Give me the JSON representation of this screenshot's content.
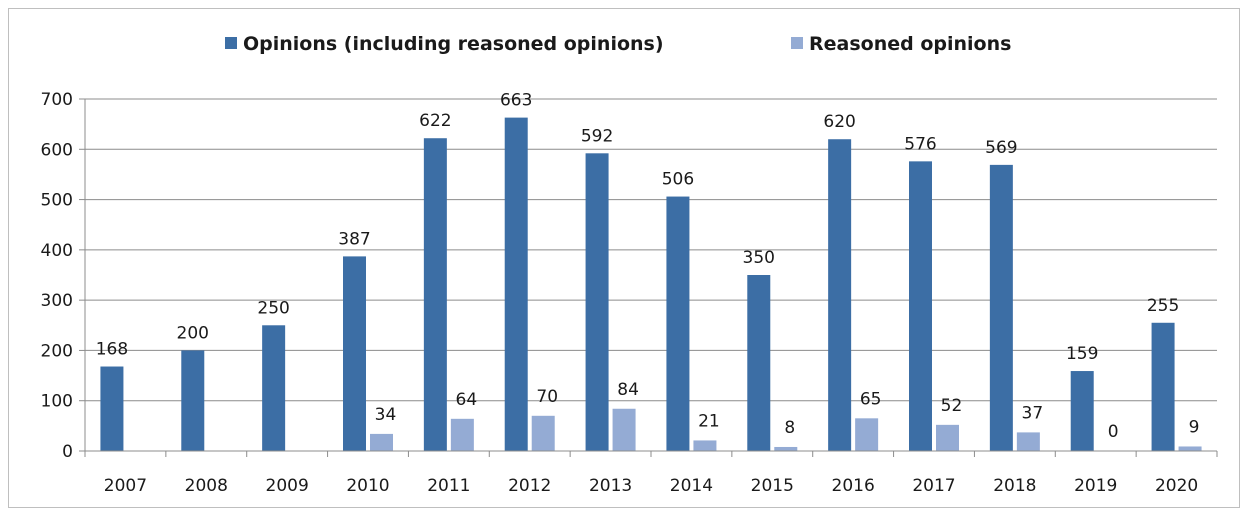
{
  "chart_data": {
    "type": "bar",
    "title": "",
    "xlabel": "",
    "ylabel": "",
    "categories": [
      "2007",
      "2008",
      "2009",
      "2010",
      "2011",
      "2012",
      "2013",
      "2014",
      "2015",
      "2016",
      "2017",
      "2018",
      "2019",
      "2020"
    ],
    "series": [
      {
        "name": "Opinions (including reasoned opinions)",
        "color": "#3c6ea5",
        "values": [
          168,
          200,
          250,
          387,
          622,
          663,
          592,
          506,
          350,
          620,
          576,
          569,
          159,
          255
        ],
        "labels": [
          "168",
          "200",
          "250",
          "387",
          "622",
          "663",
          "592",
          "506",
          "350",
          "620",
          "576",
          "569",
          "159",
          "255"
        ]
      },
      {
        "name": "Reasoned opinions",
        "color": "#94abd4",
        "values": [
          null,
          null,
          null,
          34,
          64,
          70,
          84,
          21,
          8,
          65,
          52,
          37,
          0,
          9
        ],
        "labels": [
          null,
          null,
          null,
          "34",
          "64",
          "70",
          "84",
          "21",
          "8",
          "65",
          "52",
          "37",
          "0",
          "9"
        ]
      }
    ],
    "ylim": [
      0,
      700
    ],
    "yticks": [
      "0",
      "100",
      "200",
      "300",
      "400",
      "500",
      "600",
      "700"
    ],
    "grid": true,
    "legend_position": "top"
  }
}
